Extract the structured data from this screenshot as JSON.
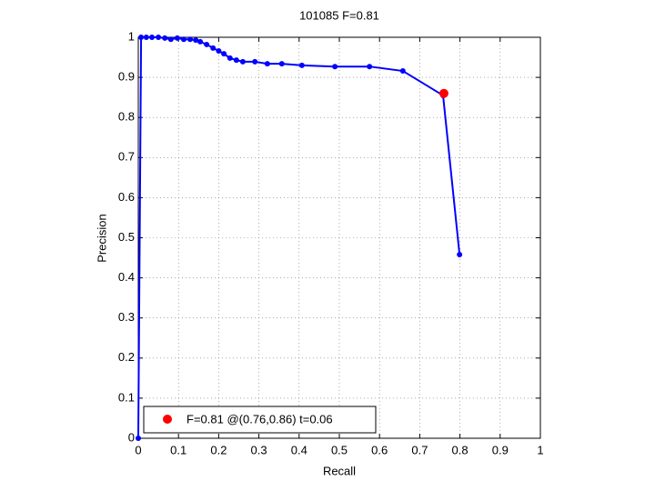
{
  "chart_data": {
    "type": "line",
    "title": "101085 F=0.81",
    "x_label": "Recall",
    "y_label": "Precision",
    "xlim": [
      0,
      1
    ],
    "ylim": [
      0,
      1
    ],
    "xticks": [
      0,
      0.1,
      0.2,
      0.3,
      0.4,
      0.5,
      0.6,
      0.7,
      0.8,
      0.9,
      1
    ],
    "yticks": [
      0,
      0.1,
      0.2,
      0.3,
      0.4,
      0.5,
      0.6,
      0.7,
      0.8,
      0.9,
      1
    ],
    "grid": true,
    "legend": "lower left",
    "series": [
      {
        "color": "#0000ff",
        "x": [
          0,
          0.007,
          0.02,
          0.034,
          0.05,
          0.066,
          0.081,
          0.097,
          0.113,
          0.129,
          0.143,
          0.154,
          0.17,
          0.186,
          0.2,
          0.213,
          0.228,
          0.244,
          0.26,
          0.29,
          0.321,
          0.357,
          0.407,
          0.489,
          0.575,
          0.658,
          0.758,
          0.799
        ],
        "values": [
          0,
          1.0,
          1.0,
          1.0,
          1.0,
          0.998,
          0.995,
          0.998,
          0.995,
          0.995,
          0.993,
          0.989,
          0.982,
          0.973,
          0.966,
          0.959,
          0.948,
          0.943,
          0.939,
          0.939,
          0.934,
          0.934,
          0.93,
          0.927,
          0.927,
          0.916,
          0.855,
          0.458
        ]
      },
      {
        "name": "F=0.81 @(0.76,0.86) t=0.06",
        "color": "#ff0000",
        "x": [
          0.76
        ],
        "values": [
          0.86
        ]
      }
    ]
  }
}
